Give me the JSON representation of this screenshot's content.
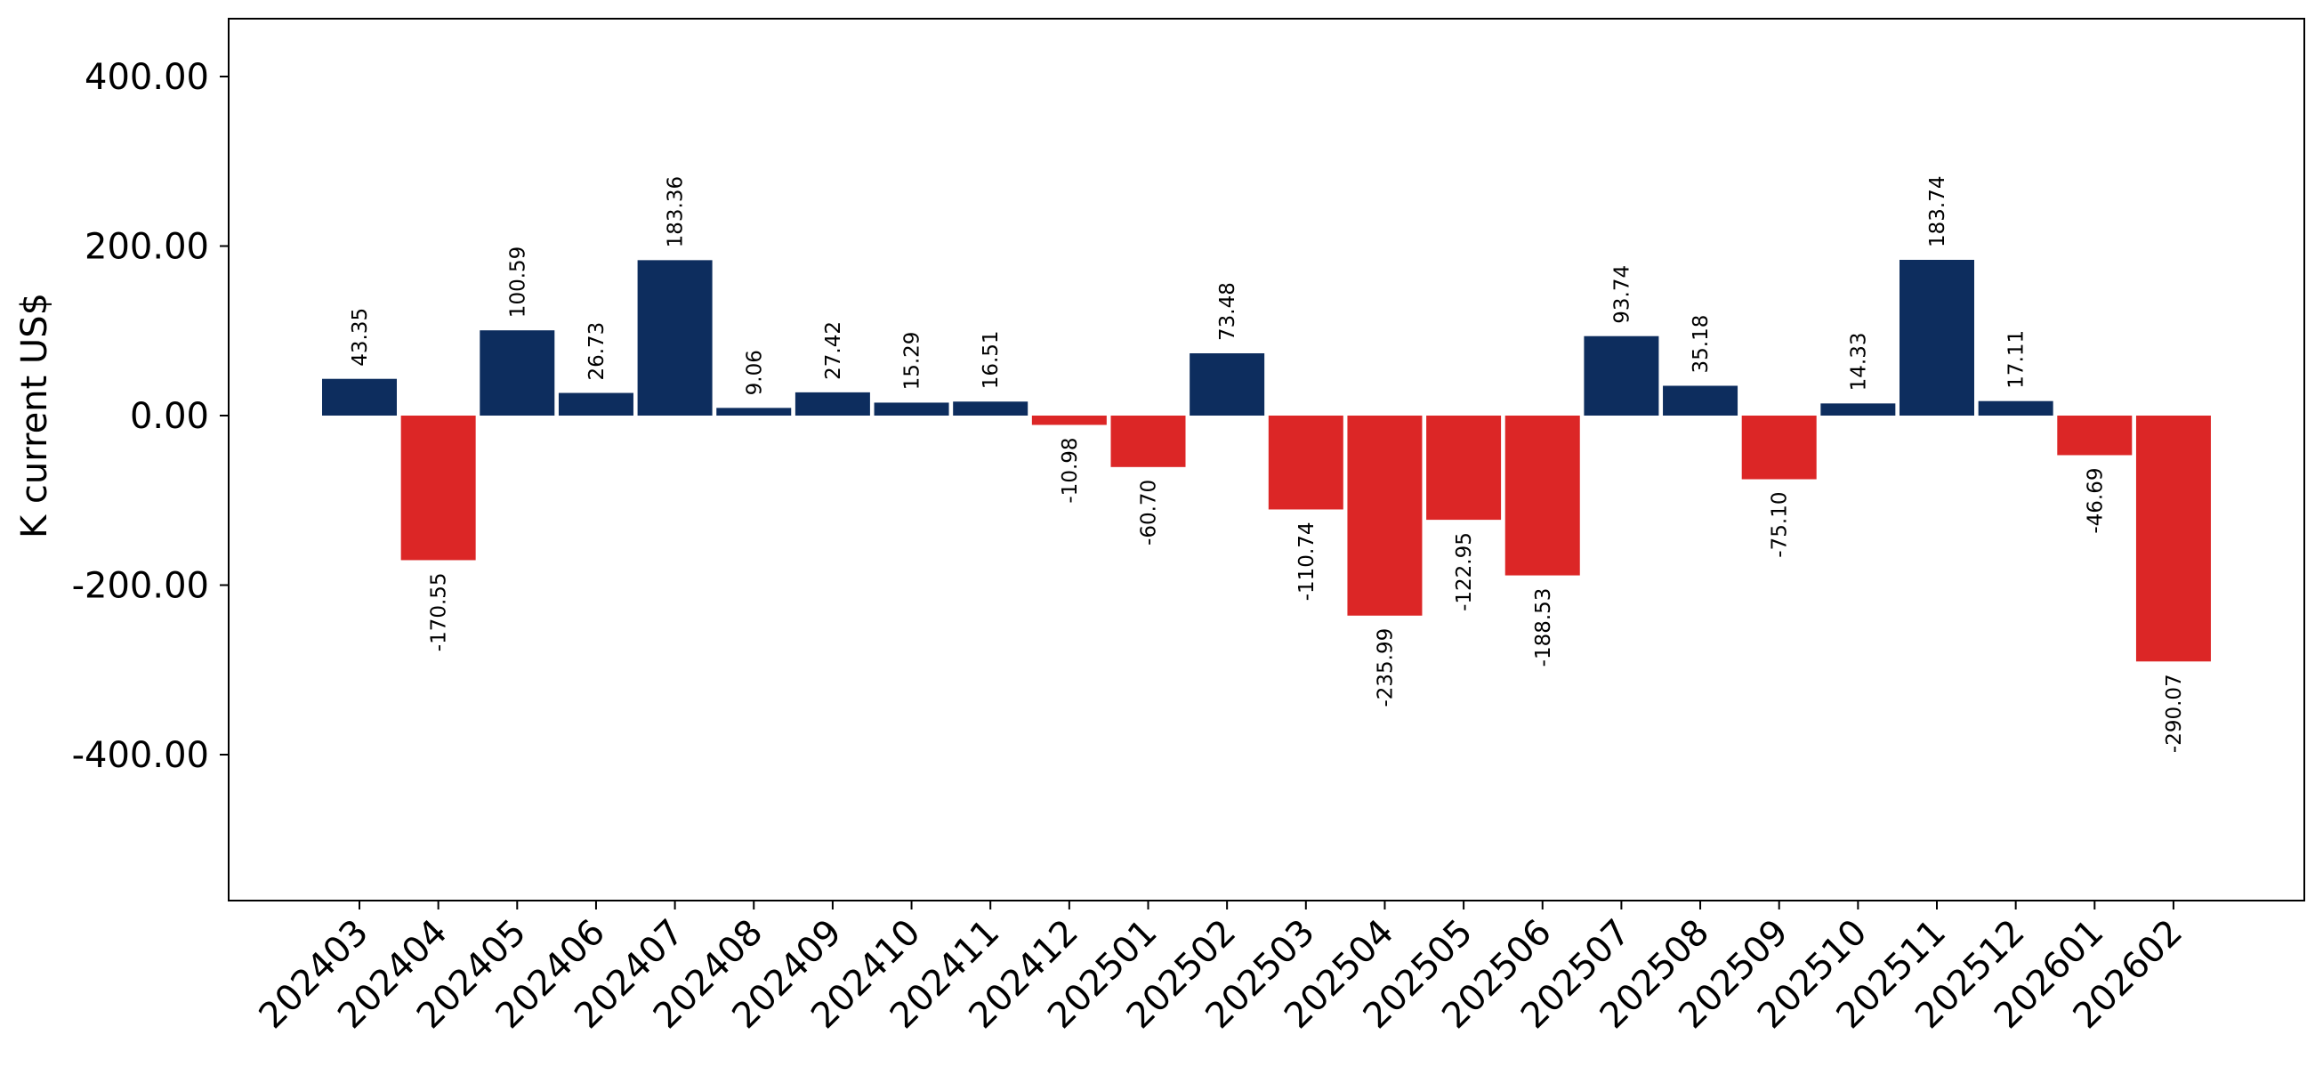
{
  "chart_data": {
    "type": "bar",
    "title": "",
    "xlabel": "",
    "ylabel": "K current US$",
    "ylim": [
      -575,
      470
    ],
    "yticks": [
      400,
      200,
      0,
      -200,
      -400
    ],
    "ytick_labels": [
      "400.00",
      "200.00",
      "0.00",
      "-200.00",
      "-400.00"
    ],
    "categories": [
      "202403",
      "202404",
      "202405",
      "202406",
      "202407",
      "202408",
      "202409",
      "202410",
      "202411",
      "202412",
      "202501",
      "202502",
      "202503",
      "202504",
      "202505",
      "202506",
      "202507",
      "202508",
      "202509",
      "202510",
      "202511",
      "202512",
      "202601",
      "202602"
    ],
    "values": [
      43.35,
      -170.55,
      100.59,
      26.73,
      183.36,
      9.06,
      27.42,
      15.29,
      16.51,
      -10.98,
      -60.7,
      73.48,
      -110.74,
      -235.99,
      -122.95,
      -188.53,
      93.74,
      35.18,
      -75.1,
      14.33,
      183.74,
      17.11,
      -46.69,
      -290.07
    ],
    "value_labels": [
      "43.35",
      "-170.55",
      "100.59",
      "26.73",
      "183.36",
      "9.06",
      "27.42",
      "15.29",
      "16.51",
      "-10.98",
      "-60.70",
      "73.48",
      "-110.74",
      "-235.99",
      "-122.95",
      "-188.53",
      "93.74",
      "35.18",
      "-75.10",
      "14.33",
      "183.74",
      "17.11",
      "-46.69",
      "-290.07"
    ],
    "grid": false,
    "legend": "none",
    "colors": {
      "positive": "#0d2d5e",
      "negative": "#dc2626"
    }
  }
}
